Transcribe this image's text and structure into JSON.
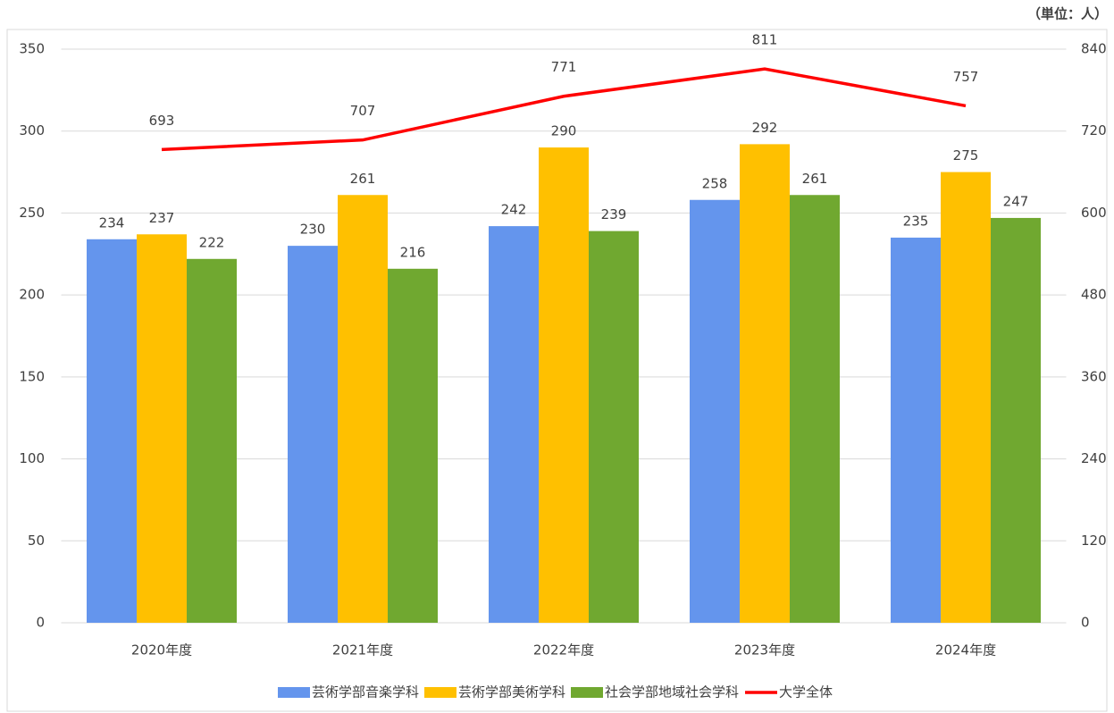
{
  "chart_data": {
    "type": "bar",
    "annotation": "（単位：人）",
    "categories": [
      "2020年度",
      "2021年度",
      "2022年度",
      "2023年度",
      "2024年度"
    ],
    "series": [
      {
        "name": "芸術学部音楽学科",
        "color": "#6495ed",
        "values": [
          234,
          230,
          242,
          258,
          235
        ]
      },
      {
        "name": "芸術学部美術学科",
        "color": "#ffc000",
        "values": [
          237,
          261,
          290,
          292,
          275
        ]
      },
      {
        "name": "社会学部地域社会学科",
        "color": "#70a830",
        "values": [
          222,
          216,
          239,
          261,
          247
        ]
      },
      {
        "name": "大学全体",
        "color": "#ff0000",
        "type": "line",
        "axis": "y2",
        "values": [
          693,
          707,
          771,
          811,
          757
        ]
      }
    ],
    "ylim": [
      0,
      350
    ],
    "yticks": [
      0,
      50,
      100,
      150,
      200,
      250,
      300,
      350
    ],
    "y2lim": [
      0,
      840
    ],
    "y2ticks": [
      0,
      120,
      240,
      360,
      480,
      600,
      720,
      840
    ],
    "grid": true,
    "legend": "bottom"
  }
}
